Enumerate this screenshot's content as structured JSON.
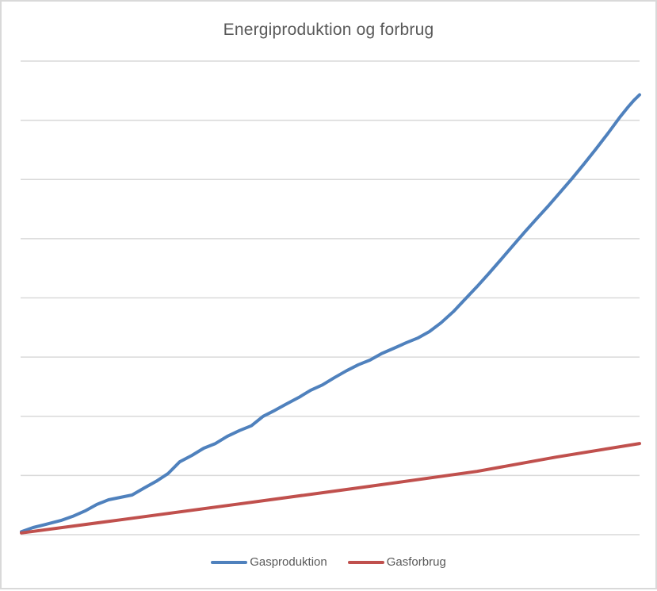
{
  "chart_data": {
    "type": "line",
    "title": "Energiproduktion og forbrug",
    "xlabel": "",
    "ylabel": "",
    "axes": {
      "x_tick_labels_visible": false,
      "y_tick_labels_visible": false,
      "y_gridline_intervals": 8,
      "y_range_gridline_units": [
        0,
        8
      ],
      "x_range_percent": [
        0,
        100
      ]
    },
    "grid": "horizontal-only",
    "legend_position": "bottom-center",
    "colors": {
      "gridline": "#D9D9D9",
      "axis_line": "#D9D9D9",
      "text": "#595959",
      "border": "#D9D9D9",
      "background": "#FFFFFF"
    },
    "series": [
      {
        "name": "Gasproduktion",
        "color": "#4F81BD",
        "x_percent": [
          0,
          1.9,
          3.8,
          6.4,
          8.3,
          10.3,
          12.2,
          14.1,
          16.0,
          17.9,
          19.9,
          21.8,
          23.7,
          25.6,
          27.6,
          29.5,
          31.4,
          33.3,
          35.3,
          37.2,
          39.1,
          41.0,
          42.9,
          44.9,
          46.8,
          48.7,
          50.6,
          52.6,
          54.5,
          56.4,
          58.3,
          60.3,
          62.2,
          64.1,
          66.0,
          67.9,
          69.9,
          71.8,
          73.7,
          75.6,
          77.6,
          79.5,
          81.4,
          83.3,
          85.3,
          87.2,
          89.1,
          91.0,
          92.9,
          94.9,
          96.8,
          98.1,
          99.1,
          100
        ],
        "y_gridline_units": [
          0.05,
          0.12,
          0.17,
          0.24,
          0.31,
          0.4,
          0.51,
          0.59,
          0.63,
          0.67,
          0.79,
          0.9,
          1.03,
          1.23,
          1.34,
          1.46,
          1.54,
          1.66,
          1.76,
          1.84,
          2.0,
          2.1,
          2.21,
          2.32,
          2.44,
          2.53,
          2.65,
          2.77,
          2.87,
          2.95,
          3.06,
          3.15,
          3.24,
          3.32,
          3.43,
          3.58,
          3.77,
          3.98,
          4.19,
          4.41,
          4.65,
          4.88,
          5.11,
          5.33,
          5.56,
          5.79,
          6.02,
          6.26,
          6.51,
          6.78,
          7.05,
          7.22,
          7.34,
          7.43
        ]
      },
      {
        "name": "Gasforbrug",
        "color": "#C0504D",
        "x_percent": [
          0,
          16.0,
          35.3,
          54.5,
          73.7,
          86.5,
          100
        ],
        "y_gridline_units": [
          0.03,
          0.25,
          0.52,
          0.79,
          1.07,
          1.31,
          1.54
        ]
      }
    ]
  }
}
